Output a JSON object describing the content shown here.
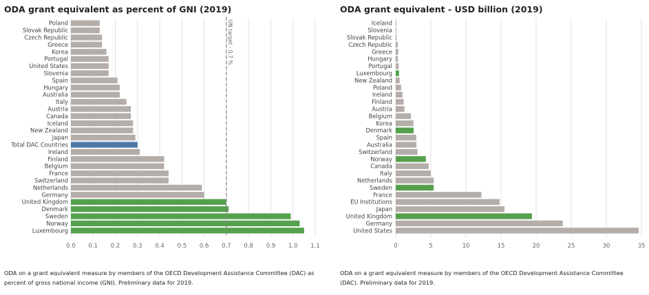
{
  "colors": {
    "grey": "#b4ada9",
    "green": "#55a04d",
    "blue": "#4e79a7",
    "gridline": "#e2e2e2",
    "reference_line": "#8c8c8c",
    "text": "#444444"
  },
  "chart_data": [
    {
      "type": "bar",
      "orientation": "horizontal",
      "title": "ODA grant equivalent as percent of GNI (2019)",
      "categories": [
        "Poland",
        "Slovak Republic",
        "Czech Republic",
        "Greece",
        "Korea",
        "Portugal",
        "United States",
        "Slovenia",
        "Spain",
        "Hungary",
        "Australia",
        "Italy",
        "Austria",
        "Canada",
        "Iceland",
        "New Zealand",
        "Japan",
        "Total DAC Countries",
        "Ireland",
        "Finland",
        "Belgium",
        "France",
        "Switzerland",
        "Netherlands",
        "Germany",
        "United Kingdom",
        "Denmark",
        "Sweden",
        "Norway",
        "Luxembourg"
      ],
      "values": [
        0.13,
        0.13,
        0.14,
        0.14,
        0.16,
        0.17,
        0.17,
        0.17,
        0.21,
        0.22,
        0.22,
        0.25,
        0.27,
        0.27,
        0.28,
        0.28,
        0.29,
        0.3,
        0.31,
        0.42,
        0.42,
        0.44,
        0.44,
        0.59,
        0.6,
        0.7,
        0.71,
        0.99,
        1.03,
        1.05
      ],
      "bar_colors": [
        "grey",
        "grey",
        "grey",
        "grey",
        "grey",
        "grey",
        "grey",
        "grey",
        "grey",
        "grey",
        "grey",
        "grey",
        "grey",
        "grey",
        "grey",
        "grey",
        "grey",
        "blue",
        "grey",
        "grey",
        "grey",
        "grey",
        "grey",
        "grey",
        "grey",
        "green",
        "green",
        "green",
        "green",
        "green"
      ],
      "xlim": [
        0,
        1.1
      ],
      "xticks": [
        "0.0",
        "0.1",
        "0.2",
        "0.3",
        "0.4",
        "0.5",
        "0.6",
        "0.7",
        "0.8",
        "0.9",
        "1.0",
        "1.1"
      ],
      "reference_line": {
        "value": 0.7,
        "label": "UN target - 0.7 %"
      },
      "grid": true,
      "caption": "ODA on a grant equivalent measure by members of the OECD Development Assistance Committee (DAC) as percent of gross national income (GNI).  Preliminary data for 2019."
    },
    {
      "type": "bar",
      "orientation": "horizontal",
      "title": "ODA grant equivalent - USD billion (2019)",
      "categories": [
        "Iceland",
        "Slovenia",
        "Slovak Republic",
        "Czech Republic",
        "Greece",
        "Hungary",
        "Portugal",
        "Luxembourg",
        "New Zealand",
        "Poland",
        "Ireland",
        "Finland",
        "Austria",
        "Belgium",
        "Korea",
        "Denmark",
        "Spain",
        "Australia",
        "Switzerland",
        "Norway",
        "Canada",
        "Italy",
        "Netherlands",
        "Sweden",
        "France",
        "EU Institutions",
        "Japan",
        "United Kingdom",
        "Germany",
        "United States"
      ],
      "values": [
        0.06,
        0.09,
        0.12,
        0.3,
        0.37,
        0.31,
        0.41,
        0.47,
        0.56,
        0.77,
        0.97,
        1.13,
        1.25,
        2.17,
        2.52,
        2.55,
        2.92,
        2.95,
        3.1,
        4.3,
        4.7,
        5.0,
        5.4,
        5.4,
        12.2,
        14.8,
        15.5,
        19.4,
        23.8,
        34.6
      ],
      "bar_colors": [
        "grey",
        "grey",
        "grey",
        "grey",
        "grey",
        "grey",
        "grey",
        "green",
        "grey",
        "grey",
        "grey",
        "grey",
        "grey",
        "grey",
        "grey",
        "green",
        "grey",
        "grey",
        "grey",
        "green",
        "grey",
        "grey",
        "grey",
        "green",
        "grey",
        "grey",
        "grey",
        "green",
        "grey",
        "grey"
      ],
      "xlim": [
        0,
        35
      ],
      "xticks": [
        "0",
        "5",
        "10",
        "15",
        "20",
        "25",
        "30",
        "35"
      ],
      "grid": true,
      "caption": "ODA on a grant equivalent measure by members of the OECD Development Assistance Committee (DAC). Preliminary data for 2019."
    }
  ]
}
